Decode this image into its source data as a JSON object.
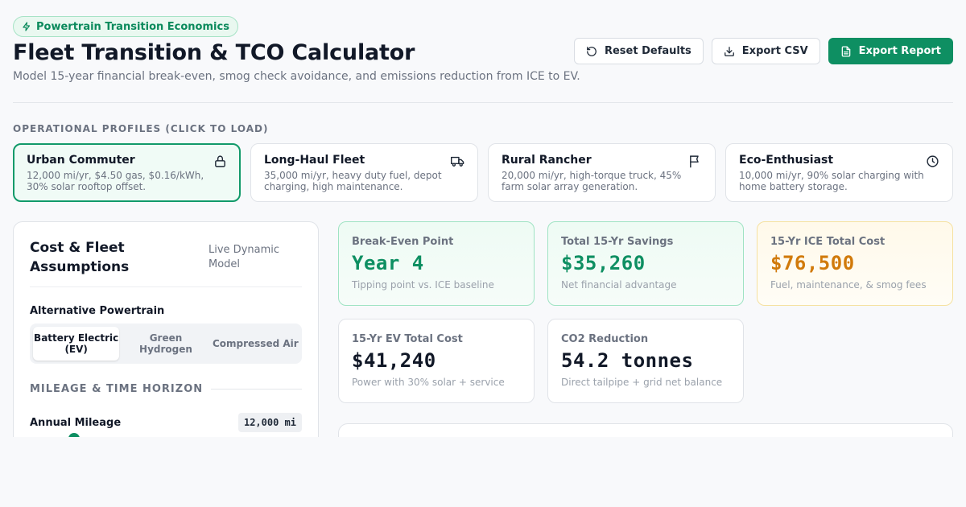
{
  "header": {
    "badge": "Powertrain Transition Economics",
    "title": "Fleet Transition & TCO Calculator",
    "subtitle": "Model 15-year financial break-even, smog check avoidance, and emissions reduction from ICE to EV.",
    "actions": {
      "reset": "Reset Defaults",
      "export_csv": "Export CSV",
      "export_report": "Export Report"
    }
  },
  "profiles": {
    "label": "OPERATIONAL PROFILES (CLICK TO LOAD)",
    "items": [
      {
        "name": "Urban Commuter",
        "desc": "12,000 mi/yr, $4.50 gas, $0.16/kWh, 30% solar rooftop offset.",
        "icon": "lock-icon",
        "active": true
      },
      {
        "name": "Long-Haul Fleet",
        "desc": "35,000 mi/yr, heavy duty fuel, depot charging, high maintenance.",
        "icon": "truck-icon",
        "active": false
      },
      {
        "name": "Rural Rancher",
        "desc": "20,000 mi/yr, high-torque truck, 45% farm solar array generation.",
        "icon": "flag-icon",
        "active": false
      },
      {
        "name": "Eco-Enthusiast",
        "desc": "10,000 mi/yr, 90% solar charging with home battery storage.",
        "icon": "clock-icon",
        "active": false
      }
    ]
  },
  "assumptions": {
    "title": "Cost & Fleet Assumptions",
    "tag": "Live Dynamic Model",
    "powertrain_label": "Alternative Powertrain",
    "powertrain_options": [
      "Battery Electric (EV)",
      "Green Hydrogen",
      "Compressed Air"
    ],
    "powertrain_selected": "Battery Electric (EV)",
    "mileage_section": "MILEAGE & TIME HORIZON",
    "mileage_label": "Annual Mileage",
    "mileage_value": "12,000 mi"
  },
  "metrics": {
    "break_even": {
      "label": "Break-Even Point",
      "value": "Year 4",
      "note": "Tipping point vs. ICE baseline"
    },
    "savings": {
      "label": "Total 15-Yr Savings",
      "value": "$35,260",
      "note": "Net financial advantage"
    },
    "ice_cost": {
      "label": "15-Yr ICE Total Cost",
      "value": "$76,500",
      "note": "Fuel, maintenance, & smog fees"
    },
    "ev_cost": {
      "label": "15-Yr EV Total Cost",
      "value": "$41,240",
      "note": "Power with 30% solar + service"
    },
    "co2": {
      "label": "CO2 Reduction",
      "value": "54.2 tonnes",
      "note": "Direct tailpipe + grid net balance"
    }
  },
  "colors": {
    "accent": "#0e8f62",
    "amber": "#d17a0b",
    "muted": "#6b7280"
  }
}
